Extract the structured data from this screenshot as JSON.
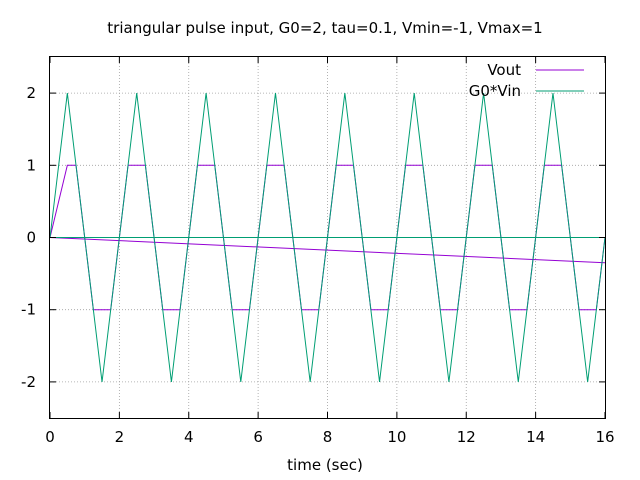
{
  "chart_data": {
    "type": "line",
    "title": "triangular pulse input, G0=2, tau=0.1, Vmin=-1, Vmax=1",
    "xlabel": "time (sec)",
    "ylabel": "",
    "xlim": [
      0,
      16
    ],
    "ylim": [
      -2.5,
      2.5
    ],
    "xticks": [
      0,
      2,
      4,
      6,
      8,
      10,
      12,
      14,
      16
    ],
    "yticks": [
      -2,
      -1,
      0,
      1,
      2
    ],
    "grid": true,
    "legend_position": "top-right",
    "series": [
      {
        "name": "Vout",
        "color": "#9400d3",
        "x": [
          0,
          0.25,
          0.5,
          0.75,
          1.0,
          1.25,
          1.5,
          1.75,
          2.0,
          2.25,
          2.5,
          2.75,
          3.0,
          3.25,
          3.5,
          3.75,
          4.0,
          4.25,
          4.5,
          4.75,
          5.0,
          5.25,
          5.5,
          5.75,
          6.0,
          6.25,
          6.5,
          6.75,
          7.0,
          7.25,
          7.5,
          7.75,
          8.0,
          8.25,
          8.5,
          8.75,
          9.0,
          9.25,
          9.5,
          9.75,
          10.0,
          10.25,
          10.5,
          10.75,
          11.0,
          11.25,
          11.5,
          11.75,
          12.0,
          12.25,
          12.5,
          12.75,
          13.0,
          13.25,
          13.5,
          13.75,
          14.0,
          14.25,
          14.5,
          14.75,
          15.0,
          15.25,
          15.5,
          15.75,
          16.0
        ],
        "y": [
          0,
          0.5,
          1,
          1,
          0,
          -1,
          -1,
          -1,
          0,
          1,
          1,
          1,
          0,
          -1,
          -1,
          -1,
          0,
          1,
          1,
          1,
          0,
          -1,
          -1,
          -1,
          0,
          1,
          1,
          1,
          0,
          -1,
          -1,
          -1,
          0,
          1,
          1,
          1,
          0,
          -1,
          -1,
          -1,
          0,
          1,
          1,
          1,
          0,
          -1,
          -1,
          -1,
          0,
          1,
          1,
          1,
          0,
          -1,
          -1,
          -1,
          0,
          1,
          1,
          1,
          0,
          -1,
          -1,
          -1,
          0
        ]
      },
      {
        "name": "Vout",
        "color": "#9400d3",
        "x": [
          0,
          16
        ],
        "y": [
          0,
          -0.35
        ]
      },
      {
        "name": "G0*Vin",
        "color": "#009e73",
        "x": [
          0,
          0.5,
          1.5,
          2.5,
          3.5,
          4.5,
          5.5,
          6.5,
          7.5,
          8.5,
          9.5,
          10.5,
          11.5,
          12.5,
          13.5,
          14.5,
          15.5,
          16.0
        ],
        "y": [
          0,
          2,
          -2,
          2,
          -2,
          2,
          -2,
          2,
          -2,
          2,
          -2,
          2,
          -2,
          2,
          -2,
          2,
          -2,
          0
        ]
      },
      {
        "name": "G0*Vin",
        "color": "#009e73",
        "x": [
          0,
          16
        ],
        "y": [
          0,
          0
        ]
      }
    ],
    "legend": [
      {
        "label": "Vout",
        "color": "#9400d3"
      },
      {
        "label": "G0*Vin",
        "color": "#009e73"
      }
    ]
  }
}
